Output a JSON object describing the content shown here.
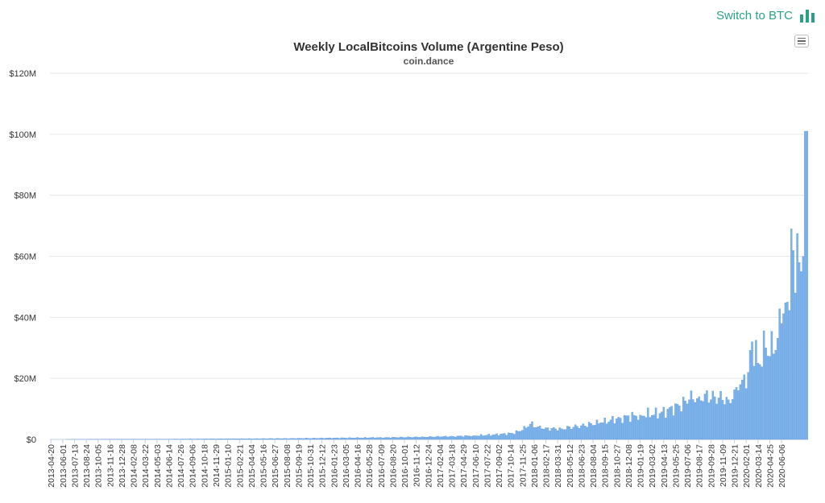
{
  "header": {
    "switch_label": "Switch to BTC",
    "switch_icon": "bar-chart-icon",
    "accent_color": "#2aa187",
    "menu_icon": "hamburger-menu-icon"
  },
  "chart_data": {
    "type": "bar",
    "title": "Weekly LocalBitcoins Volume (Argentine Peso)",
    "subtitle": "coin.dance",
    "xlabel": "",
    "ylabel": "",
    "ylim": [
      0,
      120000000
    ],
    "y_ticks": [
      0,
      20000000,
      40000000,
      60000000,
      80000000,
      100000000,
      120000000
    ],
    "y_tick_labels": [
      "$0",
      "$20M",
      "$40M",
      "$60M",
      "$80M",
      "$100M",
      "$120M"
    ],
    "x_tick_labels": [
      "2013-04-20",
      "2013-06-01",
      "2013-07-13",
      "2013-08-24",
      "2013-10-05",
      "2013-11-16",
      "2013-12-28",
      "2014-02-08",
      "2014-03-22",
      "2014-05-03",
      "2014-06-14",
      "2014-07-26",
      "2014-09-06",
      "2014-10-18",
      "2014-11-29",
      "2015-01-10",
      "2015-02-21",
      "2015-04-04",
      "2015-05-16",
      "2015-06-27",
      "2015-08-08",
      "2015-09-19",
      "2015-10-31",
      "2015-12-12",
      "2016-01-23",
      "2016-03-05",
      "2016-04-16",
      "2016-05-28",
      "2016-07-09",
      "2016-08-20",
      "2016-10-01",
      "2016-11-12",
      "2016-12-24",
      "2017-02-04",
      "2017-03-18",
      "2017-04-29",
      "2017-06-10",
      "2017-07-22",
      "2017-09-02",
      "2017-10-14",
      "2017-11-25",
      "2018-01-06",
      "2018-02-17",
      "2018-03-31",
      "2018-05-12",
      "2018-06-23",
      "2018-08-04",
      "2018-09-15",
      "2018-10-27",
      "2018-12-08",
      "2019-01-19",
      "2019-03-02",
      "2019-04-13",
      "2019-05-25",
      "2019-07-06",
      "2019-08-17",
      "2019-09-28",
      "2019-11-09",
      "2019-12-21",
      "2020-02-01",
      "2020-03-14",
      "2020-04-25",
      "2020-06-06"
    ],
    "grid": true,
    "legend": "none",
    "bar_color": "#7cb5ec",
    "bar_stroke": "#5c8fd6",
    "anchors": [
      [
        0,
        0
      ],
      [
        30,
        0.05
      ],
      [
        60,
        0.1
      ],
      [
        90,
        0.2
      ],
      [
        120,
        0.3
      ],
      [
        150,
        0.5
      ],
      [
        170,
        0.6
      ],
      [
        190,
        0.8
      ],
      [
        205,
        1.0
      ],
      [
        215,
        1.2
      ],
      [
        225,
        1.5
      ],
      [
        235,
        2.0
      ],
      [
        240,
        3.0
      ],
      [
        244,
        5.0
      ],
      [
        250,
        3.5
      ],
      [
        260,
        3.5
      ],
      [
        270,
        4.5
      ],
      [
        280,
        5.5
      ],
      [
        290,
        7.0
      ],
      [
        300,
        8.0
      ],
      [
        310,
        8.5
      ],
      [
        320,
        11.0
      ],
      [
        325,
        13.0
      ],
      [
        330,
        14.0
      ],
      [
        338,
        14.0
      ],
      [
        345,
        13.0
      ],
      [
        350,
        16.0
      ],
      [
        352,
        19.5
      ],
      [
        355,
        22.0
      ],
      [
        357,
        32.0
      ],
      [
        360,
        25.0
      ],
      [
        364,
        30.0
      ],
      [
        368,
        28.0
      ],
      [
        372,
        38.0
      ],
      [
        375,
        45.0
      ],
      [
        377,
        69.0
      ],
      [
        379,
        48.0
      ],
      [
        380,
        67.5
      ],
      [
        381,
        58.0
      ],
      [
        382,
        55.0
      ],
      [
        383,
        60.0
      ],
      [
        384,
        101.0
      ],
      [
        385,
        101.0
      ]
    ]
  }
}
